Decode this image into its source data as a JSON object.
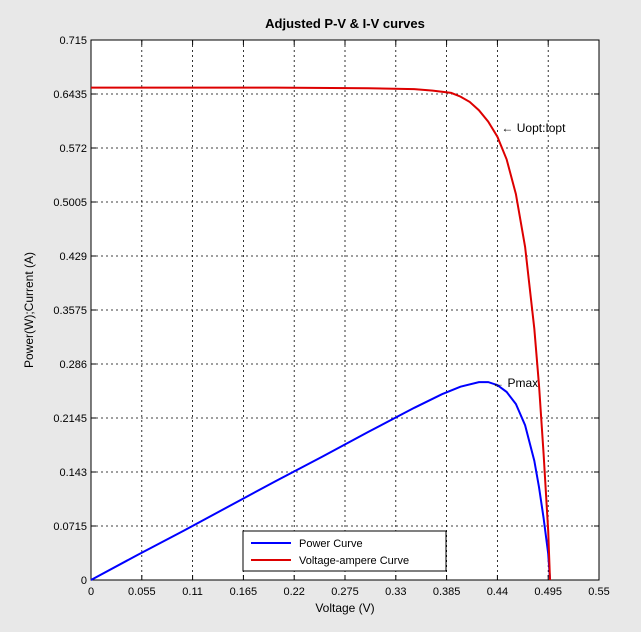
{
  "chart_data": {
    "type": "line",
    "title": "Adjusted P-V & I-V curves",
    "xlabel": "Voltage (V)",
    "ylabel": "Power(W);Current (A)",
    "xlim": [
      0,
      0.55
    ],
    "ylim": [
      0,
      0.715
    ],
    "xticks": [
      "0",
      "0.055",
      "0.11",
      "0.165",
      "0.22",
      "0.275",
      "0.33",
      "0.385",
      "0.44",
      "0.495",
      "0.55"
    ],
    "yticks": [
      "0",
      "0.0715",
      "0.143",
      "0.2145",
      "0.286",
      "0.3575",
      "0.429",
      "0.5005",
      "0.572",
      "0.6435",
      "0.715"
    ],
    "grid": true,
    "legend_position": "bottom-center",
    "series": [
      {
        "name": "Power Curve",
        "color": "#0000ff",
        "x": [
          0,
          0.05,
          0.1,
          0.15,
          0.2,
          0.25,
          0.3,
          0.35,
          0.38,
          0.4,
          0.42,
          0.43,
          0.44,
          0.45,
          0.46,
          0.47,
          0.48,
          0.485,
          0.49,
          0.495,
          0.497
        ],
        "y": [
          0,
          0.033,
          0.065,
          0.098,
          0.131,
          0.163,
          0.196,
          0.228,
          0.246,
          0.256,
          0.262,
          0.262,
          0.258,
          0.249,
          0.233,
          0.205,
          0.158,
          0.123,
          0.082,
          0.035,
          0
        ]
      },
      {
        "name": "Voltage-ampere Curve",
        "color": "#dd0000",
        "x": [
          0,
          0.1,
          0.2,
          0.3,
          0.35,
          0.37,
          0.39,
          0.4,
          0.41,
          0.42,
          0.43,
          0.44,
          0.45,
          0.46,
          0.47,
          0.48,
          0.485,
          0.49,
          0.495,
          0.497
        ],
        "y": [
          0.652,
          0.652,
          0.652,
          0.651,
          0.65,
          0.648,
          0.645,
          0.64,
          0.633,
          0.622,
          0.607,
          0.587,
          0.557,
          0.511,
          0.441,
          0.333,
          0.258,
          0.167,
          0.065,
          0
        ]
      }
    ],
    "annotations": [
      {
        "text": "Uopt:Iopt",
        "x": 0.44,
        "y": 0.6
      },
      {
        "text": "Pmax",
        "x": 0.43,
        "y": 0.262
      }
    ]
  }
}
